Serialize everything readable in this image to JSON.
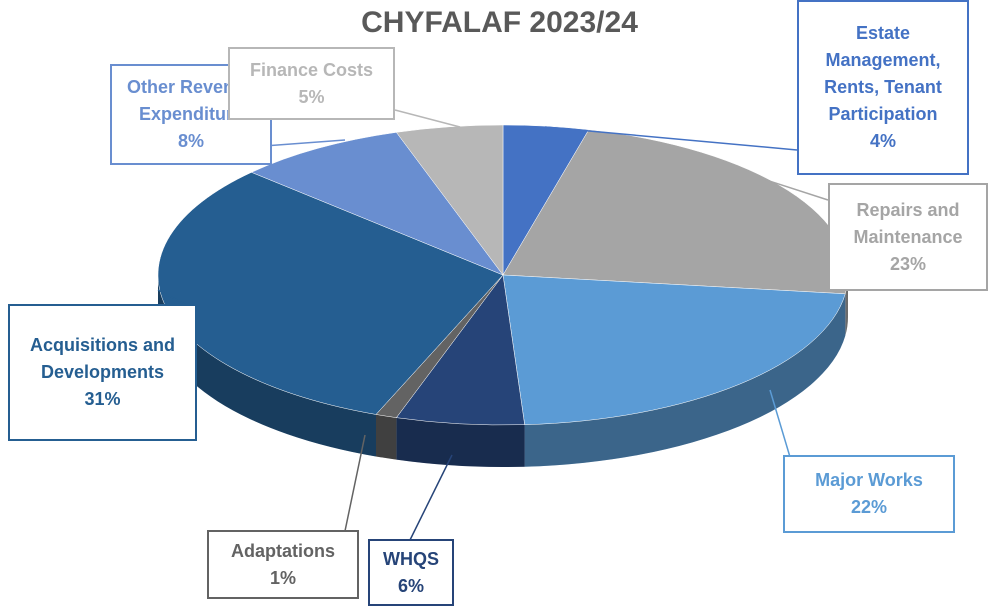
{
  "chart_data": {
    "type": "pie",
    "title": "CHYFALAF 2023/24",
    "categories": [
      "Estate Management, Rents, Tenant Participation",
      "Repairs and Maintenance",
      "Major Works",
      "WHQS",
      "Adaptations",
      "Acquisitions and Developments",
      "Other Revenue Expenditure",
      "Finance Costs"
    ],
    "values": [
      4,
      23,
      22,
      6,
      1,
      31,
      8,
      5
    ],
    "value_labels": [
      "4%",
      "23%",
      "22%",
      "6%",
      "1%",
      "31%",
      "8%",
      "5%"
    ],
    "colors": [
      "#4472c4",
      "#a5a5a5",
      "#5b9bd5",
      "#264478",
      "#636363",
      "#255e91",
      "#698ed0",
      "#b7b7b7"
    ]
  }
}
